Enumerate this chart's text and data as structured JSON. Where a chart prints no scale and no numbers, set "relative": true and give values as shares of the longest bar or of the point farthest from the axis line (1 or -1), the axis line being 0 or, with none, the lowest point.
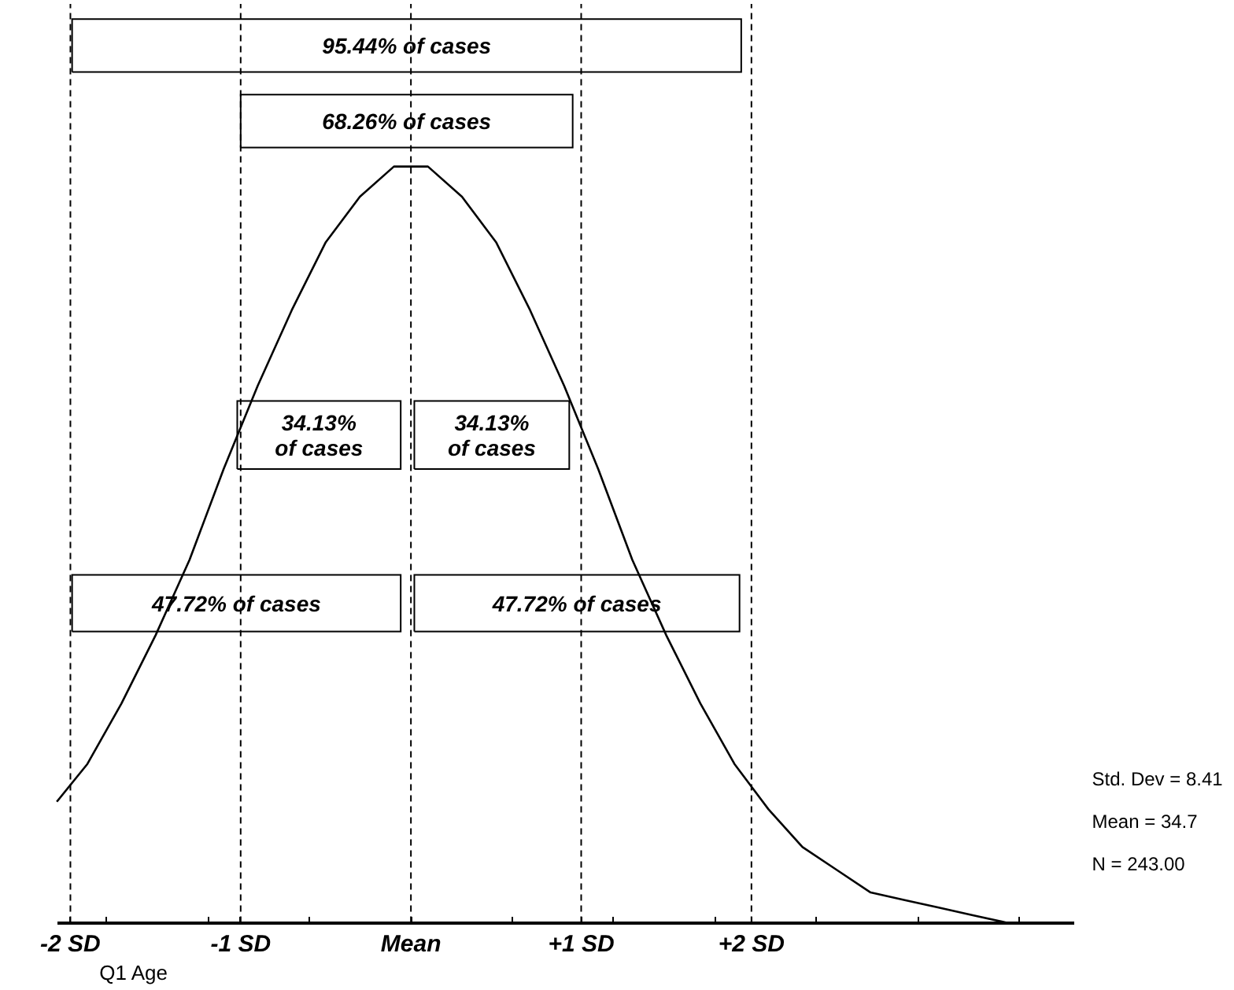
{
  "chart_data": {
    "type": "line",
    "relative": true,
    "xlabel": "Q1 Age",
    "x": [
      -2.08,
      -1.9,
      -1.7,
      -1.5,
      -1.3,
      -1.1,
      -0.9,
      -0.7,
      -0.5,
      -0.3,
      -0.1,
      0,
      0.1,
      0.3,
      0.5,
      0.7,
      0.9,
      1.1,
      1.3,
      1.5,
      1.7,
      1.9,
      2.1,
      2.3,
      2.5,
      2.7,
      2.9,
      3.1,
      3.3,
      3.5
    ],
    "series": [
      {
        "color": "#000000",
        "values": [
          0.16,
          0.21,
          0.29,
          0.38,
          0.48,
          0.6,
          0.71,
          0.81,
          0.9,
          0.96,
          1.0,
          1.0,
          1.0,
          0.96,
          0.9,
          0.81,
          0.71,
          0.6,
          0.48,
          0.38,
          0.29,
          0.21,
          0.15,
          0.1,
          0.07,
          0.04,
          0.03,
          0.02,
          0.01,
          0.0
        ]
      }
    ],
    "xlim": [
      -2.08,
      3.9
    ],
    "xticks": [
      {
        "value": -2,
        "label": "-2 SD"
      },
      {
        "value": -1,
        "label": "-1 SD"
      },
      {
        "value": 0,
        "label": "Mean"
      },
      {
        "value": 1,
        "label": "+1 SD"
      },
      {
        "value": 2,
        "label": "+2 SD"
      },
      {
        "value": -1.79,
        "label": null
      },
      {
        "value": -1.19,
        "label": null
      },
      {
        "value": -0.6,
        "label": null
      },
      {
        "value": 0.6,
        "label": null
      },
      {
        "value": 1.19,
        "label": null
      },
      {
        "value": 1.79,
        "label": null
      },
      {
        "value": 2.38,
        "label": null
      },
      {
        "value": 2.98,
        "label": null
      },
      {
        "value": 3.57,
        "label": null
      }
    ],
    "tick_labels": "x",
    "grid": false,
    "legend": false,
    "marker": "none",
    "line_style": "solid",
    "ref_lines": [
      {
        "axis": "x",
        "value": -2,
        "color": "#000000",
        "line_style": "dashed"
      },
      {
        "axis": "x",
        "value": -1,
        "color": "#000000",
        "line_style": "dashed"
      },
      {
        "axis": "x",
        "value": 0,
        "color": "#000000",
        "line_style": "dashed"
      },
      {
        "axis": "x",
        "value": 1,
        "color": "#000000",
        "line_style": "dashed"
      },
      {
        "axis": "x",
        "value": 2,
        "color": "#000000",
        "line_style": "dashed"
      }
    ],
    "annotations": [
      "95.44% of cases",
      "68.26% of cases",
      "34.13%\nof cases",
      "34.13%\nof cases",
      "47.72% of cases",
      "47.72% of cases",
      "Std. Dev = 8.41",
      "Mean = 34.7",
      "N = 243.00"
    ]
  }
}
